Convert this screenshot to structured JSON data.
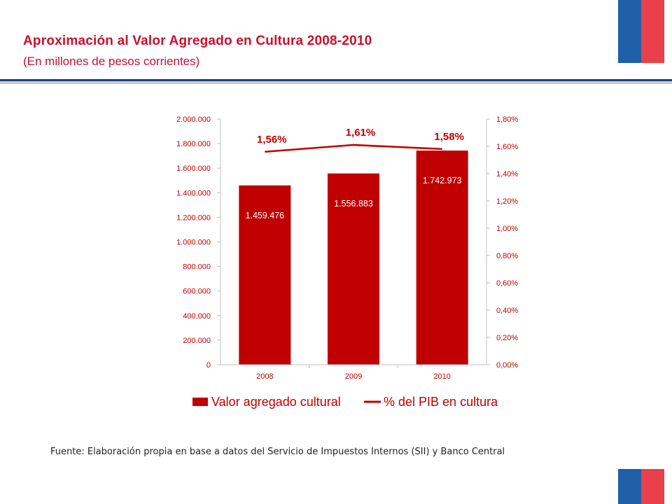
{
  "header": {
    "title": "Aproximación al Valor Agregado en Cultura 2008-2010",
    "subtitle": "(En millones de pesos corrientes)"
  },
  "colors": {
    "accent_red": "#c8102e",
    "bar_red": "#c00000",
    "rule_blue": "#1f3f7f",
    "flag_blue": "#1f5fa8",
    "flag_red": "#e8414c"
  },
  "chart_data": {
    "type": "bar",
    "categories": [
      "2008",
      "2009",
      "2010"
    ],
    "series": [
      {
        "name": "Valor agregado cultural",
        "type": "bar",
        "axis": "left",
        "values": [
          1459476,
          1556883,
          1742973
        ],
        "labels": [
          "1.459.476",
          "1.556.883",
          "1.742.973"
        ]
      },
      {
        "name": "% del PIB en cultura",
        "type": "line",
        "axis": "right",
        "values": [
          1.56,
          1.61,
          1.58
        ],
        "labels": [
          "1,56%",
          "1,61%",
          "1,58%"
        ]
      }
    ],
    "y_left": {
      "range": [
        0,
        2000000
      ],
      "ticks": [
        "0",
        "200.000",
        "400.000",
        "600.000",
        "800.000",
        "1.000.000",
        "1.200.000",
        "1.400.000",
        "1.600.000",
        "1.800.000",
        "2.000.000"
      ]
    },
    "y_right": {
      "range": [
        0,
        1.8
      ],
      "ticks": [
        "0,00%",
        "0,20%",
        "0,40%",
        "0,60%",
        "0,80%",
        "1,00%",
        "1,20%",
        "1,40%",
        "1,60%",
        "1,80%"
      ]
    },
    "grid": false,
    "legend_position": "bottom"
  },
  "footer": {
    "source": "Fuente: Elaboración propia en base a datos del Servicio de Impuestos Internos (SII) y Banco Central"
  }
}
